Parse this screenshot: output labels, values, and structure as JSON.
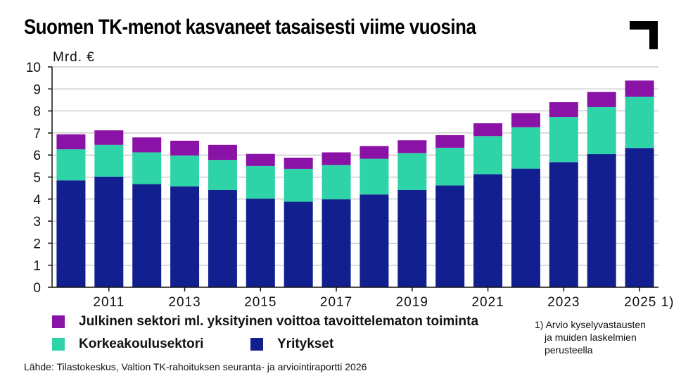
{
  "title": "Suomen TK-menot kasvaneet tasaisesti viime vuosina",
  "colors": {
    "julkinen": "#8b12a6",
    "korkeakoulu": "#2ed3a8",
    "yritykset": "#12208f",
    "grid": "#b3b3b3",
    "axis": "#111111",
    "logo": "#000000"
  },
  "chart_data": {
    "type": "bar",
    "stacked": true,
    "title": "Suomen TK-menot kasvaneet tasaisesti viime vuosina",
    "ylabel": "Mrd. €",
    "xlabel": "",
    "ylim": [
      0,
      10
    ],
    "yticks": [
      "0",
      "1",
      "2",
      "3",
      "4",
      "5",
      "6",
      "7",
      "8",
      "9",
      "10"
    ],
    "grid": true,
    "categories": [
      "2010",
      "2011",
      "2012",
      "2013",
      "2014",
      "2015",
      "2016",
      "2017",
      "2018",
      "2019",
      "2020",
      "2021",
      "2022",
      "2023",
      "2024",
      "2025"
    ],
    "xtick_labels": [
      "",
      "2011",
      "",
      "2013",
      "",
      "2015",
      "",
      "2017",
      "",
      "2019",
      "",
      "2021",
      "",
      "2023",
      "",
      "2025 1)"
    ],
    "series": [
      {
        "name": "Yritykset",
        "color_key": "yritykset",
        "values": [
          4.85,
          5.02,
          4.68,
          4.58,
          4.41,
          4.02,
          3.88,
          3.99,
          4.21,
          4.41,
          4.62,
          5.13,
          5.38,
          5.68,
          6.04,
          6.32
        ]
      },
      {
        "name": "Korkeakoulusektori",
        "color_key": "korkeakoulu",
        "values": [
          1.41,
          1.44,
          1.44,
          1.4,
          1.37,
          1.48,
          1.49,
          1.56,
          1.62,
          1.68,
          1.71,
          1.73,
          1.88,
          2.05,
          2.14,
          2.32
        ]
      },
      {
        "name": "Julkinen sektori ml. yksityinen voittoa tavoittelematon toiminta",
        "color_key": "julkinen",
        "values": [
          0.68,
          0.66,
          0.68,
          0.67,
          0.68,
          0.55,
          0.51,
          0.57,
          0.58,
          0.58,
          0.57,
          0.58,
          0.64,
          0.67,
          0.68,
          0.74
        ]
      }
    ]
  },
  "legend": {
    "julkinen": "Julkinen sektori ml. yksityinen voittoa tavoittelematon toiminta",
    "korkeakoulu": "Korkeakoulusektori",
    "yritykset": "Yritykset"
  },
  "footnote": [
    "1) Arvio kyselyvastausten",
    "ja muiden laskelmien",
    "perusteella"
  ],
  "source": "Lähde: Tilastokeskus, Valtion TK-rahoituksen seuranta- ja arviointiraportti 2026"
}
